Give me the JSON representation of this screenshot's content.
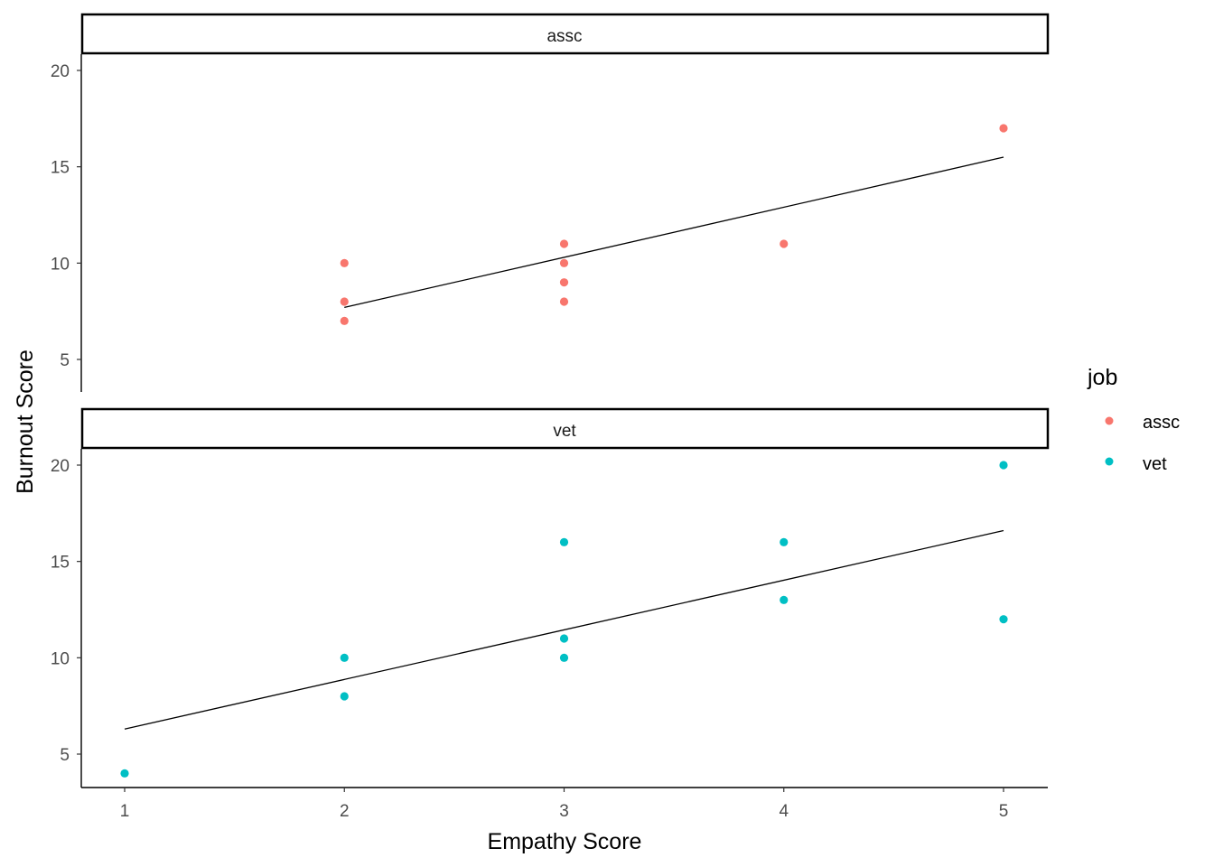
{
  "chart_data": {
    "type": "scatter",
    "xlabel": "Empathy Score",
    "ylabel": "Burnout Score",
    "xlim": [
      0.8,
      5.2
    ],
    "ylim": [
      3.3,
      20.7
    ],
    "x_ticks": [
      "1",
      "2",
      "3",
      "4",
      "5"
    ],
    "y_ticks": [
      "5",
      "10",
      "15",
      "20"
    ],
    "grid": false,
    "legend": {
      "title": "job",
      "placement": "right",
      "entries": [
        {
          "label": "assc",
          "color": "#F8766D"
        },
        {
          "label": "vet",
          "color": "#00BFC4"
        }
      ]
    },
    "facets": [
      {
        "label": "assc",
        "color": "#F8766D",
        "points": [
          {
            "x": 2,
            "y": 10
          },
          {
            "x": 2,
            "y": 8
          },
          {
            "x": 2,
            "y": 7
          },
          {
            "x": 3,
            "y": 11
          },
          {
            "x": 3,
            "y": 10
          },
          {
            "x": 3,
            "y": 9
          },
          {
            "x": 3,
            "y": 8
          },
          {
            "x": 4,
            "y": 11
          },
          {
            "x": 5,
            "y": 17
          }
        ],
        "fit_line": {
          "x": [
            2,
            5
          ],
          "y": [
            7.7,
            15.5
          ]
        }
      },
      {
        "label": "vet",
        "color": "#00BFC4",
        "points": [
          {
            "x": 1,
            "y": 4
          },
          {
            "x": 2,
            "y": 10
          },
          {
            "x": 2,
            "y": 8
          },
          {
            "x": 3,
            "y": 16
          },
          {
            "x": 3,
            "y": 11
          },
          {
            "x": 3,
            "y": 10
          },
          {
            "x": 4,
            "y": 16
          },
          {
            "x": 4,
            "y": 13
          },
          {
            "x": 5,
            "y": 20
          },
          {
            "x": 5,
            "y": 12
          }
        ],
        "fit_line": {
          "x": [
            1,
            5
          ],
          "y": [
            6.3,
            16.6
          ]
        }
      }
    ]
  }
}
